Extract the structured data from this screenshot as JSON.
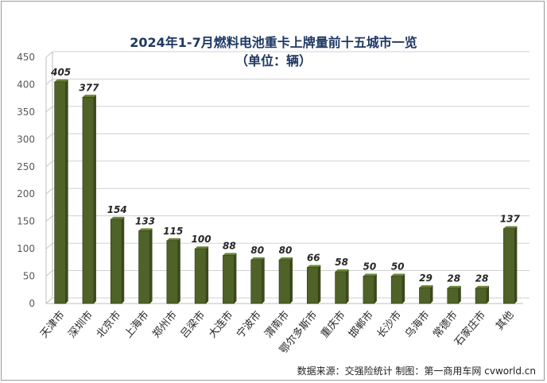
{
  "chart_data": {
    "type": "bar",
    "title": "2024年1-7月燃料电池重卡上牌量前十五城市一览",
    "subtitle": "（单位：辆）",
    "categories": [
      "天津市",
      "深圳市",
      "北京市",
      "上海市",
      "郑州市",
      "吕梁市",
      "大连市",
      "宁波市",
      "渭南市",
      "鄂尔多斯市",
      "重庆市",
      "邯郸市",
      "长沙市",
      "乌海市",
      "常德市",
      "石家庄市",
      "其他"
    ],
    "values": [
      405,
      377,
      154,
      133,
      115,
      100,
      88,
      80,
      80,
      66,
      58,
      50,
      50,
      29,
      28,
      28,
      137
    ],
    "yticks": [
      "0",
      "50",
      "100",
      "150",
      "200",
      "250",
      "300",
      "350",
      "400",
      "450"
    ],
    "ylim": [
      0,
      450
    ],
    "grid": true,
    "bar_color": "#4f6228",
    "bar_side_color": "#3b4a1c",
    "bar_top_color": "#6b8435"
  },
  "source": "数据来源：交强险统计   制图：第一商用车网 cvworld.cn"
}
